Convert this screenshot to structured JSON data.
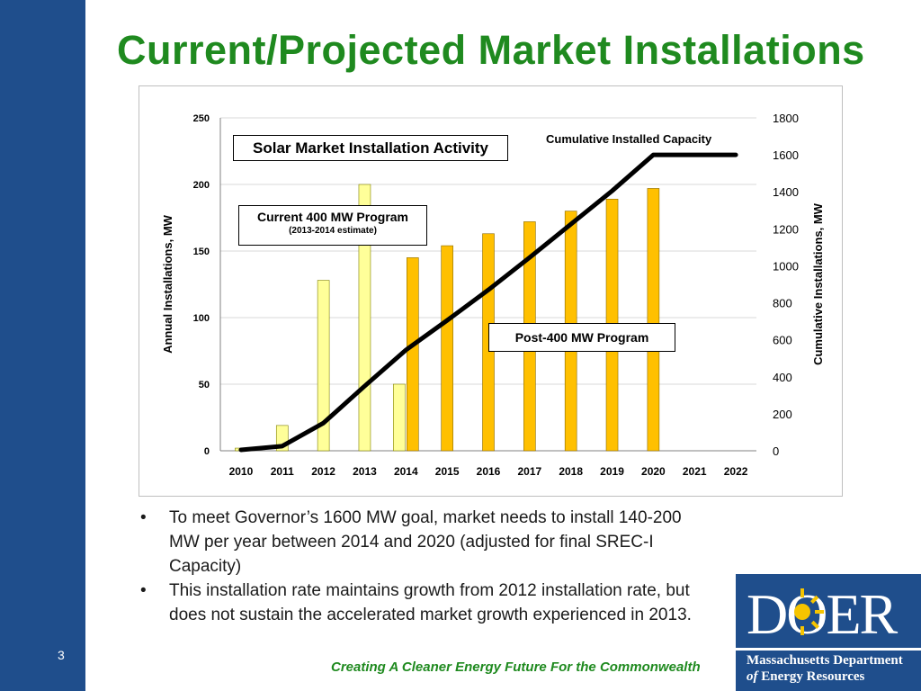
{
  "slide": {
    "title": "Current/Projected Market Installations",
    "number": "3",
    "footer": "Creating A Cleaner Energy Future For the Commonwealth",
    "bullets": [
      "To meet Governor’s 1600 MW goal, market needs to install 140-200 MW per year between 2014 and 2020 (adjusted for final SREC-I Capacity)",
      "This installation rate maintains growth from 2012 installation rate, but does not sustain the accelerated market growth experienced in 2013."
    ],
    "bullet_glyph": "•",
    "logo": {
      "letters": "DOER",
      "org_line1": "Massachusetts Department",
      "org_line2_prefix": "of",
      "org_line2_rest": "Energy Resources",
      "background": "#1f4e8c"
    },
    "colors": {
      "sidebar": "#1f4e8c",
      "title": "#1f8a1f",
      "footer": "#1f8a1f"
    }
  },
  "chart_data": {
    "type": "bar",
    "title": "Solar Market Installation Activity",
    "ylabel": "Annual Installations, MW",
    "y2label": "Cumulative Installations, MW",
    "categories": [
      "2010",
      "2011",
      "2012",
      "2013",
      "2014",
      "2015",
      "2016",
      "2017",
      "2018",
      "2019",
      "2020",
      "2021",
      "2022"
    ],
    "ylim": [
      0,
      250
    ],
    "y2lim": [
      0,
      1800
    ],
    "yticks": [
      0,
      50,
      100,
      150,
      200,
      250
    ],
    "y2ticks": [
      0,
      200,
      400,
      600,
      800,
      1000,
      1200,
      1400,
      1600,
      1800
    ],
    "grid": true,
    "series": [
      {
        "name": "Current 400 MW Program",
        "note": "(2013-2014 estimate)",
        "kind": "bar",
        "color": "#ffff99",
        "values": [
          2,
          19,
          128,
          200,
          50,
          null,
          null,
          null,
          null,
          null,
          null,
          null,
          null
        ]
      },
      {
        "name": "Post-400 MW Program",
        "kind": "bar",
        "color": "#ffc000",
        "values": [
          null,
          null,
          null,
          null,
          145,
          154,
          163,
          172,
          180,
          189,
          197,
          null,
          null
        ]
      },
      {
        "name": "Cumulative Installed Capacity",
        "kind": "line",
        "axis": "y2",
        "color": "#000000",
        "values": [
          5,
          25,
          150,
          350,
          545,
          705,
          870,
          1045,
          1225,
          1405,
          1600,
          1600,
          1600
        ]
      }
    ]
  }
}
